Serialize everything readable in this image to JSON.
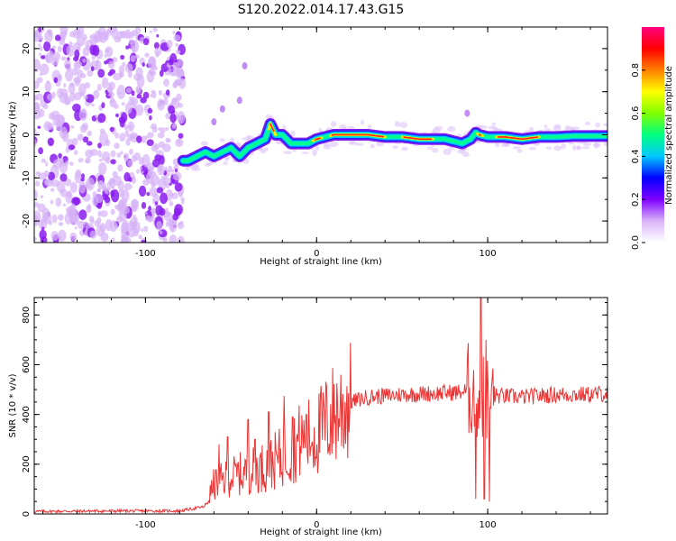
{
  "title": "S120.2022.014.17.43.G15",
  "chart_data": [
    {
      "type": "heatmap",
      "xlabel": "Height of straight line (km)",
      "ylabel": "Frequency (Hz)",
      "xlim": [
        -165,
        170
      ],
      "ylim": [
        -25,
        25
      ],
      "xticks": [
        -100,
        0,
        100
      ],
      "xtick_labels": [
        "-100",
        "0",
        "100"
      ],
      "yticks": [
        -20,
        -10,
        0,
        10,
        20
      ],
      "ytick_labels": [
        "-20",
        "-10",
        "0",
        "10",
        "20"
      ],
      "colorbar": {
        "label": "Normalized spectral amplitude",
        "range": [
          0,
          1
        ],
        "ticks": [
          0.0,
          0.2,
          0.4,
          0.6,
          0.8
        ],
        "tick_labels": [
          "0.0",
          "0.2",
          "0.4",
          "0.6",
          "0.8"
        ],
        "colors": [
          "#ffffff",
          "#d8b4f8",
          "#8000ff",
          "#0000ff",
          "#00c8ff",
          "#00ff80",
          "#80ff00",
          "#ffff00",
          "#ff8000",
          "#ff0000",
          "#ff0080"
        ]
      },
      "ridge": {
        "x": [
          -75,
          -70,
          -65,
          -60,
          -55,
          -50,
          -45,
          -40,
          -35,
          -30,
          -27,
          -24,
          -20,
          -15,
          -10,
          -5,
          0,
          5,
          10,
          20,
          30,
          40,
          50,
          60,
          70,
          75,
          80,
          85,
          90,
          93,
          95,
          100,
          110,
          120,
          130,
          140,
          150,
          160,
          170
        ],
        "y": [
          -6,
          -5,
          -4,
          -5,
          -4,
          -3,
          -5,
          -3,
          -2,
          -1,
          2.5,
          0,
          0,
          -2,
          -2,
          -2,
          -1,
          -0.5,
          0,
          0,
          0,
          -0.5,
          -0.5,
          -1,
          -1,
          -1,
          -1.5,
          -2,
          -1,
          0.5,
          0,
          -0.5,
          -0.5,
          -1,
          -0.5,
          -0.5,
          -0.3,
          -0.3,
          -0.3
        ]
      },
      "grid": false
    },
    {
      "type": "line",
      "xlabel": "Height of straight line (km)",
      "ylabel": "SNR (10 * v/v)",
      "xlim": [
        -165,
        170
      ],
      "ylim": [
        0,
        870
      ],
      "xticks": [
        -100,
        0,
        100
      ],
      "xtick_labels": [
        "-100",
        "0",
        "100"
      ],
      "yticks": [
        0,
        200,
        400,
        600,
        800
      ],
      "ytick_labels": [
        "0",
        "200",
        "400",
        "600",
        "800"
      ],
      "color": "#ee3333",
      "envelope": {
        "x": [
          -165,
          -120,
          -80,
          -65,
          -60,
          -50,
          -40,
          -30,
          -20,
          -10,
          0,
          10,
          20,
          30,
          50,
          70,
          85,
          90,
          95,
          100,
          105,
          120,
          140,
          160,
          170
        ],
        "y": [
          10,
          12,
          12,
          30,
          120,
          150,
          170,
          190,
          230,
          290,
          320,
          400,
          450,
          470,
          480,
          485,
          490,
          500,
          480,
          470,
          475,
          470,
          480,
          480,
          485
        ]
      },
      "spikes": [
        {
          "x": -57,
          "y": 280
        },
        {
          "x": -52,
          "y": 310
        },
        {
          "x": -40,
          "y": 380
        },
        {
          "x": -36,
          "y": 300
        },
        {
          "x": -28,
          "y": 410
        },
        {
          "x": -19,
          "y": 475
        },
        {
          "x": -14,
          "y": 390
        },
        {
          "x": -6,
          "y": 400
        },
        {
          "x": 96,
          "y": 870
        },
        {
          "x": 98,
          "y": 60
        },
        {
          "x": 99,
          "y": 700
        },
        {
          "x": 101,
          "y": 50
        },
        {
          "x": 93,
          "y": 60
        }
      ],
      "grid": false
    }
  ]
}
